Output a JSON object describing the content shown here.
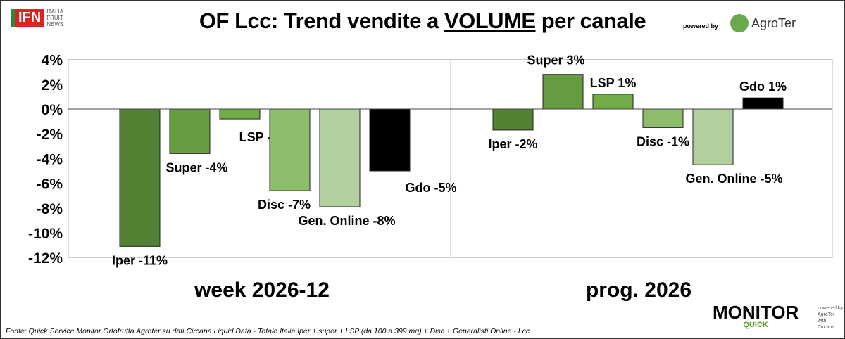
{
  "header": {
    "title_pre": "OF Lcc: Trend vendite a ",
    "title_u": "VOLUME",
    "title_post": " per canale",
    "ifn_logo": "IFN",
    "ifn_sub": [
      "ITALIA",
      "FRUIT",
      "NEWS"
    ],
    "powered_by": "powered by",
    "agroter": "AgroTer"
  },
  "footer": {
    "source": "Fonte: Quick Service Monitor Ortofrutta Agroter su dati Circana Liquid Data - Totale Italia Iper + super + LSP (da 100 a 399 mq) + Disc + Generalisti Online - Lcc",
    "monitor": "MONITOR",
    "quick": "QUICK",
    "side": [
      "powered by",
      "AgroTer",
      "with",
      "Circana"
    ]
  },
  "chart_data": {
    "type": "bar",
    "title": "OF Lcc: Trend vendite a VOLUME per canale",
    "ylim": [
      -12,
      4
    ],
    "yticks": [
      "4%",
      "2%",
      "0%",
      "-2%",
      "-4%",
      "-6%",
      "-8%",
      "-10%",
      "-12%"
    ],
    "ytick_values": [
      4,
      2,
      0,
      -2,
      -4,
      -6,
      -8,
      -10,
      -12
    ],
    "groups": [
      "week 2026-12",
      "prog. 2026"
    ],
    "series": [
      {
        "name": "Iper",
        "color": "#548235",
        "values": [
          -11.1,
          -1.7
        ],
        "labels": [
          "Iper -11%",
          "Iper -2%"
        ]
      },
      {
        "name": "Super",
        "color": "#659c3f",
        "values": [
          -3.6,
          2.8
        ],
        "labels": [
          "Super -4%",
          "Super 3%"
        ]
      },
      {
        "name": "LSP",
        "color": "#70ad47",
        "values": [
          -0.8,
          1.2
        ],
        "labels": [
          "LSP -1%",
          "LSP 1%"
        ]
      },
      {
        "name": "Disc",
        "color": "#8dbd6c",
        "values": [
          -6.6,
          -1.5
        ],
        "labels": [
          "Disc -7%",
          "Disc -1%"
        ]
      },
      {
        "name": "Gen. Online",
        "color": "#b2d09d",
        "values": [
          -7.9,
          -4.5
        ],
        "labels": [
          "Gen. Online -8%",
          "Gen. Online -5%"
        ]
      },
      {
        "name": "Gdo",
        "color": "#000000",
        "values": [
          -5.0,
          0.9
        ],
        "labels": [
          "Gdo -5%",
          "Gdo 1%"
        ]
      }
    ]
  }
}
